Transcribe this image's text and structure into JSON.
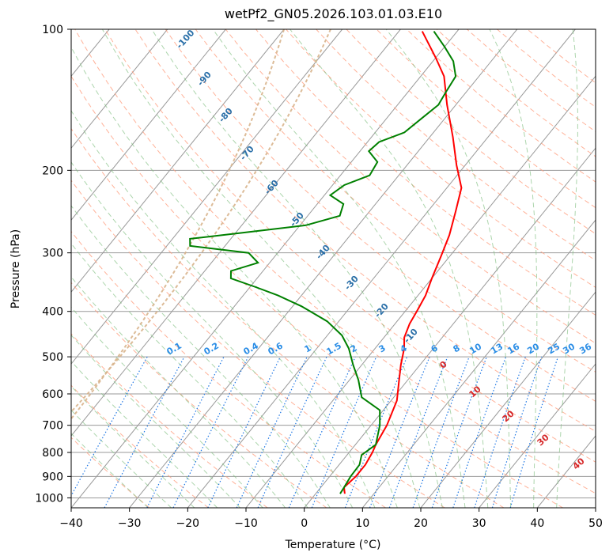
{
  "chart_data": {
    "type": "line",
    "title": "wetPf2_GN05.2026.103.01.03.E10",
    "xlabel": "Temperature (°C)",
    "ylabel": "Pressure (hPa)",
    "xlim": [
      -40,
      50
    ],
    "ylim": [
      1050,
      100
    ],
    "y_scale": "log",
    "x_ticks": [
      -40,
      -30,
      -20,
      -10,
      0,
      10,
      20,
      30,
      40,
      50
    ],
    "x_tick_labels": [
      "−40",
      "−30",
      "−20",
      "−10",
      "0",
      "10",
      "20",
      "30",
      "40",
      "50"
    ],
    "y_ticks": [
      1000,
      900,
      800,
      700,
      600,
      500,
      400,
      300,
      200,
      100
    ],
    "y_tick_labels": [
      "1000",
      "900",
      "800",
      "700",
      "600",
      "500",
      "400",
      "300",
      "200",
      "100"
    ],
    "grid": true,
    "skew": true,
    "series": [
      {
        "color": "#ff0000",
        "points": [
          [
            5.0,
            980
          ],
          [
            4.0,
            950
          ],
          [
            4.5,
            900
          ],
          [
            4.5,
            850
          ],
          [
            4.0,
            800
          ],
          [
            3.5,
            770
          ],
          [
            2.7,
            700
          ],
          [
            1.0,
            620
          ],
          [
            -1.5,
            560
          ],
          [
            -3.3,
            520
          ],
          [
            -5.0,
            480
          ],
          [
            -6.5,
            455
          ],
          [
            -7.5,
            425
          ],
          [
            -8.0,
            400
          ],
          [
            -8.7,
            370
          ],
          [
            -10.0,
            340
          ],
          [
            -11.5,
            305
          ],
          [
            -13.0,
            275
          ],
          [
            -15.2,
            245
          ],
          [
            -17.5,
            218
          ],
          [
            -21.5,
            195
          ],
          [
            -26.0,
            170
          ],
          [
            -31.5,
            145
          ],
          [
            -36.0,
            126
          ],
          [
            -40.0,
            115
          ],
          [
            -46.0,
            101
          ]
        ]
      },
      {
        "color": "#008000",
        "points": [
          [
            4.2,
            980
          ],
          [
            4.0,
            950
          ],
          [
            3.6,
            900
          ],
          [
            3.5,
            850
          ],
          [
            2.5,
            810
          ],
          [
            3.5,
            770
          ],
          [
            1.5,
            700
          ],
          [
            -0.6,
            650
          ],
          [
            -5.5,
            610
          ],
          [
            -8.5,
            560
          ],
          [
            -11.5,
            520
          ],
          [
            -14.5,
            480
          ],
          [
            -17.5,
            450
          ],
          [
            -22.0,
            420
          ],
          [
            -28.5,
            390
          ],
          [
            -34.0,
            370
          ],
          [
            -39.0,
            355
          ],
          [
            -44.5,
            340
          ],
          [
            -45.5,
            328
          ],
          [
            -42.0,
            315
          ],
          [
            -45.0,
            300
          ],
          [
            -56.0,
            290
          ],
          [
            -57.0,
            280
          ],
          [
            -50.0,
            273
          ],
          [
            -39.0,
            262
          ],
          [
            -34.5,
            250
          ],
          [
            -35.5,
            236
          ],
          [
            -39.0,
            226
          ],
          [
            -38.0,
            215
          ],
          [
            -35.0,
            205
          ],
          [
            -35.5,
            192
          ],
          [
            -38.5,
            182
          ],
          [
            -38.0,
            174
          ],
          [
            -35.0,
            166
          ],
          [
            -34.0,
            155
          ],
          [
            -33.0,
            145
          ],
          [
            -33.5,
            136
          ],
          [
            -34.0,
            126
          ],
          [
            -36.5,
            117
          ],
          [
            -40.0,
            109
          ],
          [
            -44.0,
            101
          ]
        ]
      }
    ],
    "dry_adiabat_labels": [
      "-100",
      "-90",
      "-80",
      "-70",
      "-60",
      "-50",
      "-40",
      "-30",
      "-20",
      "-10"
    ],
    "mixing_ratio_labels": [
      "0.1",
      "0.2",
      "0.4",
      "0.6",
      "1",
      "1.5",
      "2",
      "3",
      "4",
      "6",
      "8",
      "10",
      "13",
      "16",
      "20",
      "25",
      "30",
      "36"
    ],
    "moist_adiabat_labels": [
      "0",
      "10",
      "20",
      "30",
      "40"
    ],
    "colors": {
      "temperature": "#ff0000",
      "dewpoint": "#008000",
      "isotherm": "#999999",
      "dry_adiabat": "#ff9f80",
      "moist_adiabat": "#7fbf7f",
      "mixing_ratio": "#1f77e4",
      "lcl_dashed": "#d8b48c"
    }
  }
}
